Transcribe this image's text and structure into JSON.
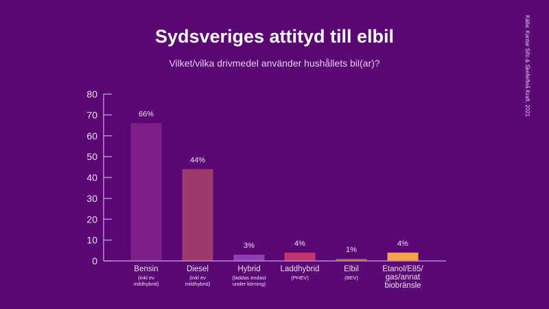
{
  "source": "Källa: Kantar Sifo & Skellefteå Kraft, 2021",
  "chart_data": {
    "type": "bar",
    "title": "Sydsveriges attityd till elbil",
    "subtitle": "Vilket/vilka drivmedel använder hushållets bil(ar)?",
    "xlabel": "",
    "ylabel": "",
    "ylim": [
      0,
      80
    ],
    "yticks": [
      0,
      10,
      20,
      30,
      40,
      50,
      60,
      70,
      80
    ],
    "categories": [
      "Bensin",
      "Diesel",
      "Hybrid",
      "Laddhybrid",
      "Elbil",
      "Etanol/E85/ gas/annat biobränsle"
    ],
    "category_notes": [
      "(inkl ev mildhybrid)",
      "(inkl ev mildhybrid)",
      "(laddas endast under körning)",
      "(PHEV)",
      "(BEV)",
      ""
    ],
    "values": [
      66,
      44,
      3,
      4,
      1,
      4
    ],
    "data_labels": [
      "66%",
      "44%",
      "3%",
      "4%",
      "1%",
      "4%"
    ],
    "colors": [
      "#7d1f88",
      "#9c3a6b",
      "#8e3fb4",
      "#c1346c",
      "#9a6a34",
      "#f6a24c"
    ],
    "grid": false
  }
}
